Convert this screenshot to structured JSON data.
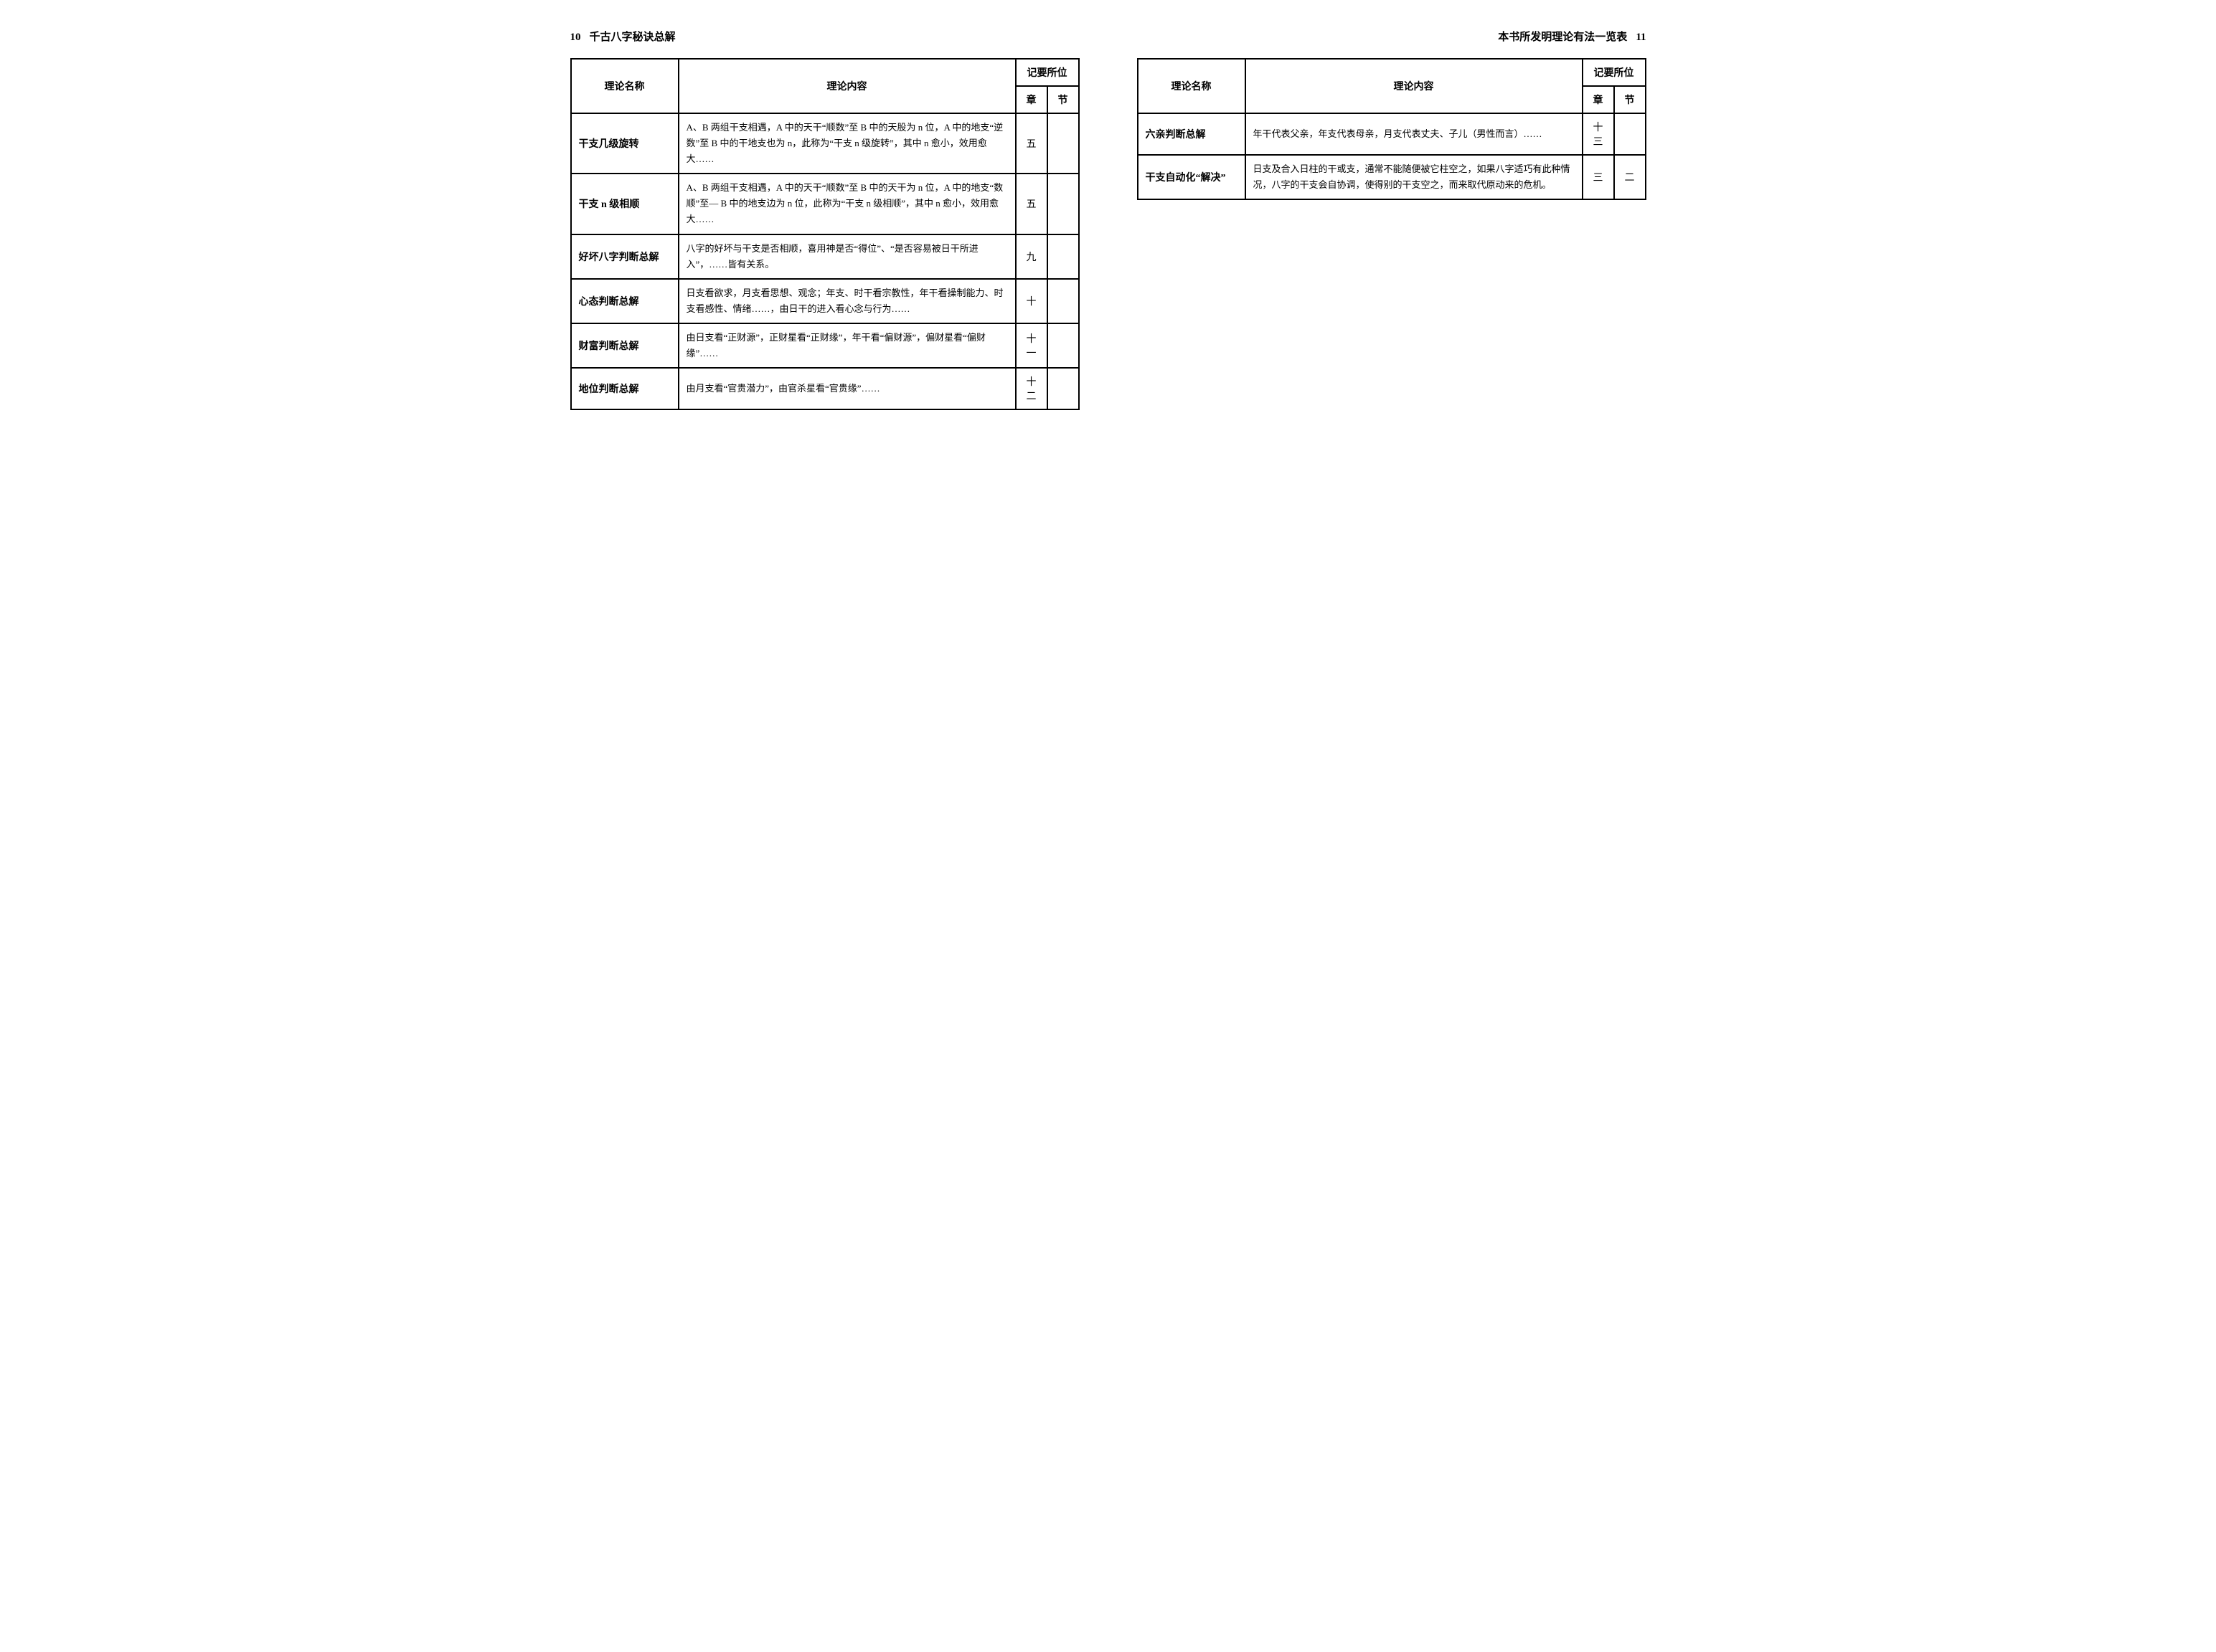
{
  "leftPage": {
    "pageNumber": "10",
    "runningHead": "千古八字秘诀总解",
    "headers": {
      "name": "理论名称",
      "content": "理论内容",
      "location": "记要所位",
      "chapter": "章",
      "section": "节"
    },
    "rows": [
      {
        "name": "干支几级旋转",
        "content": "A、B 两组干支相遇，A 中的天干“顺数”至 B 中的天股为 n 位，A 中的地支“逆数”至 B 中的干地支也为 n，此称为“干支 n 级旋转”，其中 n 愈小，效用愈大……",
        "chapter": "五",
        "section": ""
      },
      {
        "name": "干支 n 级相顺",
        "content": "A、B 两组干支相遇，A 中的天干“顺数”至 B 中的天干为 n 位，A 中的地支“数顺”至— B 中的地支边为 n 位，此称为“干支 n 级相顺”，其中 n 愈小，效用愈大……",
        "chapter": "五",
        "section": ""
      },
      {
        "name": "好坏八字判断总解",
        "content": "八字的好坏与干支是否相顺，喜用神是否“得位”、“是否容易被日干所进入”，……皆有关系。",
        "chapter": "九",
        "section": ""
      },
      {
        "name": "心态判断总解",
        "content": "日支看欲求，月支看思想、观念；年支、时干看宗教性，年干看操制能力、时支看感性、情绪……，由日干的进入看心念与行为……",
        "chapter": "十",
        "section": ""
      },
      {
        "name": "财富判断总解",
        "content": "由日支看“正财源”，正财星看“正财缘”，年干看“偏财源”，偏财星看“偏财缘”……",
        "chapter": "十一",
        "section": ""
      },
      {
        "name": "地位判断总解",
        "content": "由月支看“官贵潜力”，由官杀星看“官贵缘”……",
        "chapter": "十二",
        "section": ""
      }
    ]
  },
  "rightPage": {
    "pageNumber": "11",
    "runningHead": "本书所发明理论有法一览表",
    "headers": {
      "name": "理论名称",
      "content": "理论内容",
      "location": "记要所位",
      "chapter": "章",
      "section": "节"
    },
    "rows": [
      {
        "name": "六亲判断总解",
        "content": "年干代表父亲，年支代表母亲，月支代表丈夫、子儿（男性而言）……",
        "chapter": "十三",
        "section": ""
      },
      {
        "name": "干支自动化“解决”",
        "content": "日支及合入日柱的干或支，通常不能随便被它柱空之，如果八字适巧有此种情况，八字的干支会自协调，使得别的干支空之，而来取代原动来的危机。",
        "chapter": "三",
        "section": "二"
      }
    ]
  }
}
